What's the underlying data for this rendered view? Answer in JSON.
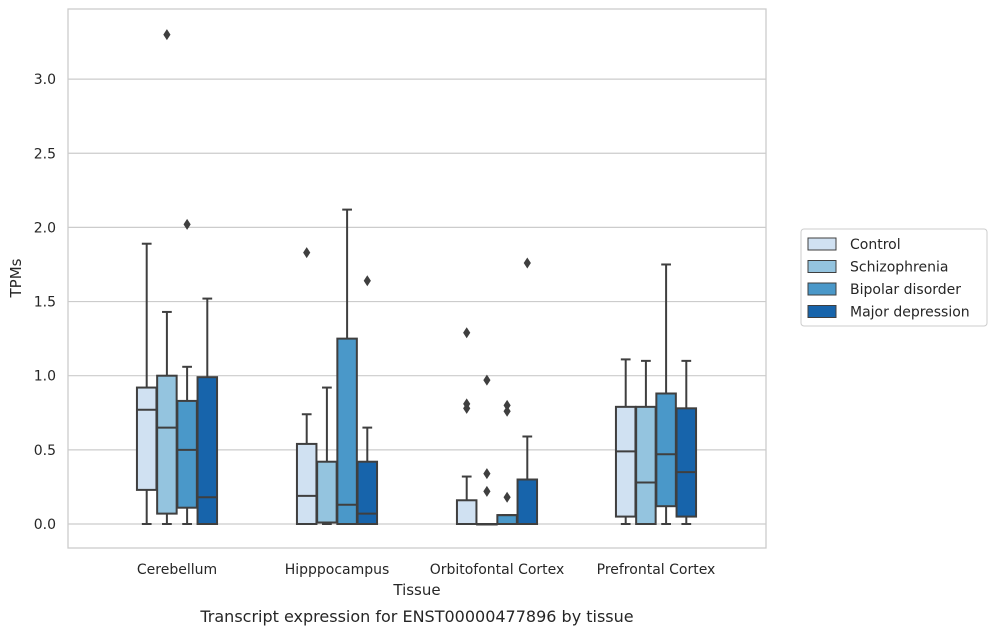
{
  "chart_data": {
    "type": "boxplot",
    "caption": "Transcript expression for ENST00000477896 by tissue",
    "xlabel": "Tissue",
    "ylabel": "TPMs",
    "ylim": [
      -0.16,
      3.47
    ],
    "yticks": [
      "0.0",
      "0.5",
      "1.0",
      "1.5",
      "2.0",
      "2.5",
      "3.0"
    ],
    "grid": true,
    "legend_position": "right",
    "categories": [
      "Cerebellum",
      "Hipppocampus",
      "Orbitofontal Cortex",
      "Prefrontal Cortex"
    ],
    "series": [
      {
        "name": "Control",
        "color": "#d0e1f2",
        "boxes": [
          {
            "whislo": 0.0,
            "q1": 0.23,
            "med": 0.77,
            "q3": 0.92,
            "whishi": 1.89,
            "fliers": []
          },
          {
            "whislo": 0.0,
            "q1": 0.0,
            "med": 0.19,
            "q3": 0.54,
            "whishi": 0.74,
            "fliers": [
              1.83
            ]
          },
          {
            "whislo": 0.0,
            "q1": 0.0,
            "med": 0.0,
            "q3": 0.16,
            "whishi": 0.32,
            "fliers": [
              0.78,
              0.81,
              1.29
            ]
          },
          {
            "whislo": 0.0,
            "q1": 0.05,
            "med": 0.49,
            "q3": 0.79,
            "whishi": 1.11,
            "fliers": []
          }
        ]
      },
      {
        "name": "Schizophrenia",
        "color": "#94c4df",
        "boxes": [
          {
            "whislo": 0.0,
            "q1": 0.07,
            "med": 0.65,
            "q3": 1.0,
            "whishi": 1.43,
            "fliers": [
              3.3
            ]
          },
          {
            "whislo": 0.0,
            "q1": 0.01,
            "med": 0.01,
            "q3": 0.42,
            "whishi": 0.92,
            "fliers": []
          },
          {
            "whislo": 0.0,
            "q1": 0.0,
            "med": 0.0,
            "q3": 0.0,
            "whishi": 0.0,
            "fliers": [
              0.22,
              0.34,
              0.97
            ]
          },
          {
            "whislo": 0.0,
            "q1": 0.0,
            "med": 0.28,
            "q3": 0.79,
            "whishi": 1.1,
            "fliers": []
          }
        ]
      },
      {
        "name": "Bipolar disorder",
        "color": "#4a98c9",
        "boxes": [
          {
            "whislo": 0.0,
            "q1": 0.11,
            "med": 0.5,
            "q3": 0.83,
            "whishi": 1.06,
            "fliers": [
              2.02
            ]
          },
          {
            "whislo": 0.0,
            "q1": 0.0,
            "med": 0.13,
            "q3": 1.25,
            "whishi": 2.12,
            "fliers": []
          },
          {
            "whislo": 0.0,
            "q1": 0.0,
            "med": 0.06,
            "q3": 0.06,
            "whishi": 0.06,
            "fliers": [
              0.18,
              0.76,
              0.8
            ]
          },
          {
            "whislo": 0.0,
            "q1": 0.12,
            "med": 0.47,
            "q3": 0.88,
            "whishi": 1.75,
            "fliers": []
          }
        ]
      },
      {
        "name": "Major depression",
        "color": "#1764ab",
        "boxes": [
          {
            "whislo": 0.0,
            "q1": 0.0,
            "med": 0.18,
            "q3": 0.99,
            "whishi": 1.52,
            "fliers": []
          },
          {
            "whislo": 0.0,
            "q1": 0.0,
            "med": 0.07,
            "q3": 0.42,
            "whishi": 0.65,
            "fliers": [
              1.64
            ]
          },
          {
            "whislo": 0.0,
            "q1": 0.0,
            "med": 0.0,
            "q3": 0.3,
            "whishi": 0.59,
            "fliers": [
              1.76
            ]
          },
          {
            "whislo": 0.0,
            "q1": 0.05,
            "med": 0.35,
            "q3": 0.78,
            "whishi": 1.1,
            "fliers": []
          }
        ]
      }
    ]
  }
}
